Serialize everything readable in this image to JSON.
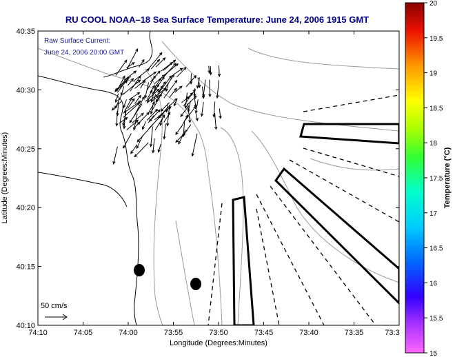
{
  "chart_data": {
    "type": "map",
    "title": "RU COOL   NOAA–18  Sea Surface Temperature:  June 24, 2006 1915 GMT",
    "xlabel": "Longitude (Degrees:Minutes)",
    "ylabel": "Latitude (Degrees:Minutes)",
    "x_ticks": [
      "74:10",
      "74:05",
      "74:00",
      "73:55",
      "73:50",
      "73:45",
      "73:40",
      "73:35",
      "73:3"
    ],
    "y_ticks": [
      "40:10",
      "40:15",
      "40:20",
      "40:25",
      "40:30",
      "40:35"
    ],
    "xlim_minutes_west": [
      10,
      30
    ],
    "ylim_minutes_north": [
      10,
      35
    ],
    "inset_lines": [
      "Raw Surface Current:",
      "June 24, 2006 20:00 GMT"
    ],
    "scale_label": "50 cm/s",
    "colorbar": {
      "label": "Temperature (°C)",
      "ticks": [
        "20",
        "19.5",
        "19",
        "18.5",
        "18",
        "17.5",
        "17",
        "16.5",
        "16",
        "15.5",
        "15"
      ],
      "range": [
        15,
        20
      ],
      "colors": [
        "#ff66ff",
        "#9900ff",
        "#0000ff",
        "#0099ff",
        "#00ffff",
        "#00ff66",
        "#66ff00",
        "#ffff00",
        "#ffaa00",
        "#ff3300",
        "#cc0000",
        "#880000"
      ]
    },
    "grid": false,
    "legend": "none"
  }
}
